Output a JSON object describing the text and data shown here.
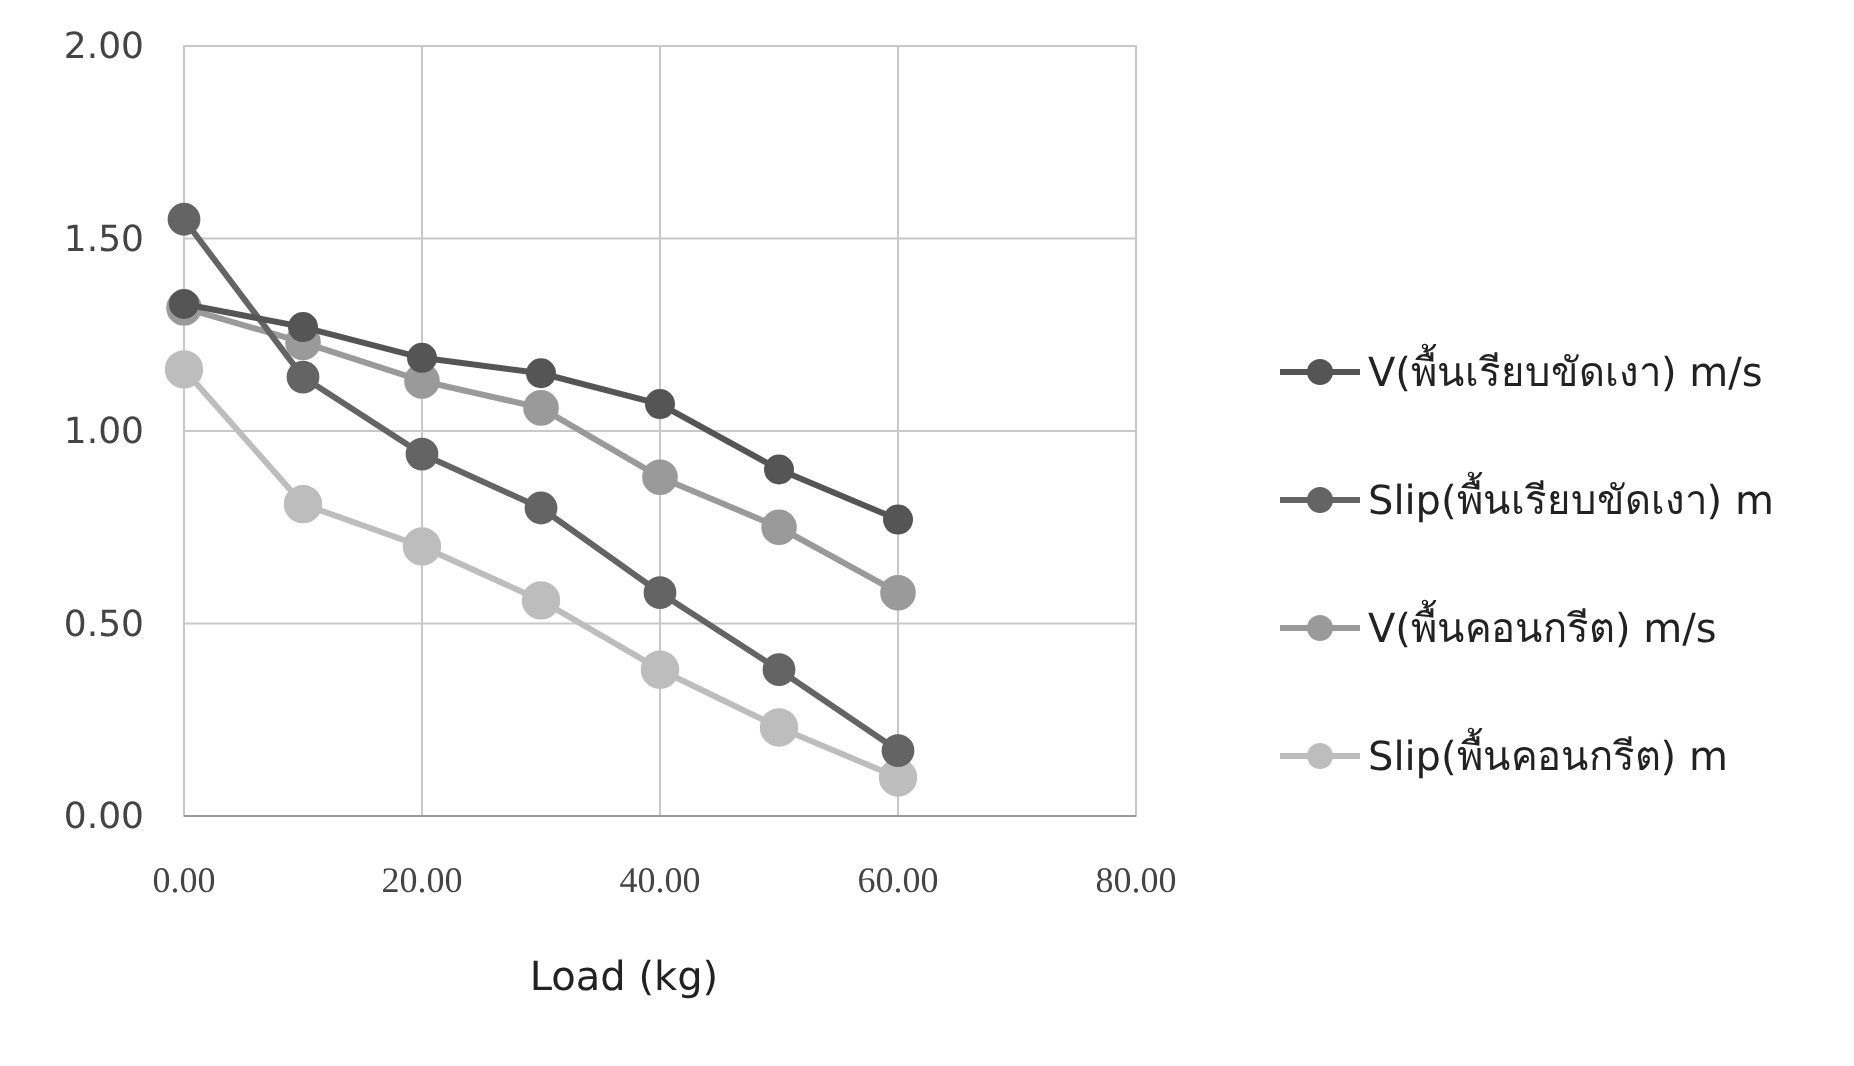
{
  "chart_data": {
    "type": "line",
    "xlabel": "Load (kg)",
    "x": [
      0,
      10,
      20,
      30,
      40,
      50,
      60
    ],
    "xlim": [
      0,
      80
    ],
    "xticks": [
      {
        "value": 0,
        "label": "0.00"
      },
      {
        "value": 20,
        "label": "20.00"
      },
      {
        "value": 40,
        "label": "40.00"
      },
      {
        "value": 60,
        "label": "60.00"
      },
      {
        "value": 80,
        "label": "80.00"
      }
    ],
    "ylim": [
      0,
      2
    ],
    "yticks": [
      {
        "value": 0,
        "label": "0.00"
      },
      {
        "value": 0.5,
        "label": "0.50"
      },
      {
        "value": 1,
        "label": "1.00"
      },
      {
        "value": 1.5,
        "label": "1.50"
      },
      {
        "value": 2,
        "label": "2.00"
      }
    ],
    "grid": true,
    "legend": "right",
    "marker": "circle",
    "series": [
      {
        "name": "V(พื้นเรียบขัดเงา) m/s",
        "color": "#555555",
        "values": [
          1.33,
          1.27,
          1.19,
          1.15,
          1.07,
          0.9,
          0.77
        ]
      },
      {
        "name": "Slip(พื้นเรียบขัดเงา) m",
        "color": "#646464",
        "values": [
          1.55,
          1.14,
          0.94,
          0.8,
          0.58,
          0.38,
          0.17
        ]
      },
      {
        "name": "V(พื้นคอนกรีต) m/s",
        "color": "#9a9a9a",
        "values": [
          1.32,
          1.23,
          1.13,
          1.06,
          0.88,
          0.75,
          0.58
        ]
      },
      {
        "name": "Slip(พื้นคอนกรีต) m",
        "color": "#bdbdbd",
        "values": [
          1.16,
          0.81,
          0.7,
          0.56,
          0.38,
          0.23,
          0.1
        ]
      }
    ]
  }
}
